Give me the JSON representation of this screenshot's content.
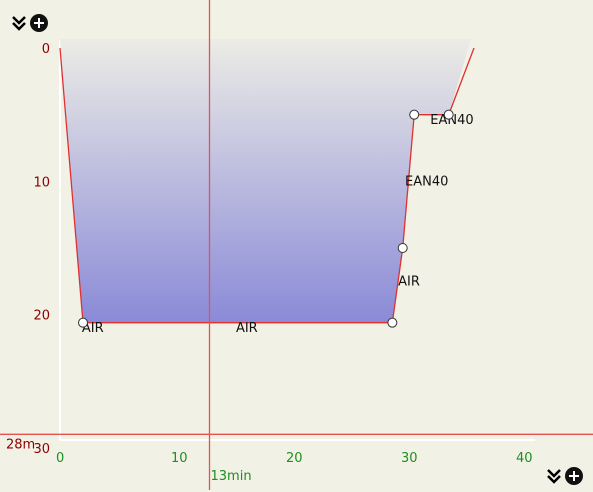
{
  "toolbar": {
    "top_left_icon": "collapse-add-icon",
    "bottom_right_icon": "collapse-add-icon"
  },
  "colors": {
    "background": "#f2f1e6",
    "profile_line": "#e03030",
    "crosshair": "#e85050",
    "gradient_top": "#ecece6",
    "gradient_bottom": "#8a8ad8",
    "depth_ticks": "#8b0000",
    "time_ticks": "#1f8f1f"
  },
  "chart_data": {
    "type": "area",
    "x_ticks": [
      "0",
      "10",
      "20",
      "30",
      "40"
    ],
    "y_ticks": [
      "0",
      "10",
      "20",
      "30"
    ],
    "xlim": [
      0,
      41
    ],
    "ylim": [
      0,
      30
    ],
    "y_inverted": true,
    "profile": [
      {
        "t": 0,
        "d": 0
      },
      {
        "t": 2,
        "d": 20.6
      },
      {
        "t": 28.9,
        "d": 20.6
      },
      {
        "t": 29.8,
        "d": 15
      },
      {
        "t": 30.8,
        "d": 5
      },
      {
        "t": 33.8,
        "d": 5
      },
      {
        "t": 36,
        "d": 0
      }
    ],
    "markers": [
      {
        "t": 2,
        "d": 20.6
      },
      {
        "t": 28.9,
        "d": 20.6
      },
      {
        "t": 29.8,
        "d": 15
      },
      {
        "t": 30.8,
        "d": 5
      },
      {
        "t": 33.8,
        "d": 5
      }
    ],
    "gas_labels": [
      {
        "text": "AIR",
        "t": 1.9,
        "d": 21.3
      },
      {
        "text": "AIR",
        "t": 15.3,
        "d": 21.3
      },
      {
        "text": "AIR",
        "t": 29.4,
        "d": 17.8
      },
      {
        "text": "EAN40",
        "t": 30.0,
        "d": 10.3
      },
      {
        "text": "EAN40",
        "t": 32.2,
        "d": 5.7
      }
    ],
    "cursor": {
      "time": 13,
      "time_label": "13min",
      "depth": 28,
      "depth_label": "28m"
    }
  }
}
